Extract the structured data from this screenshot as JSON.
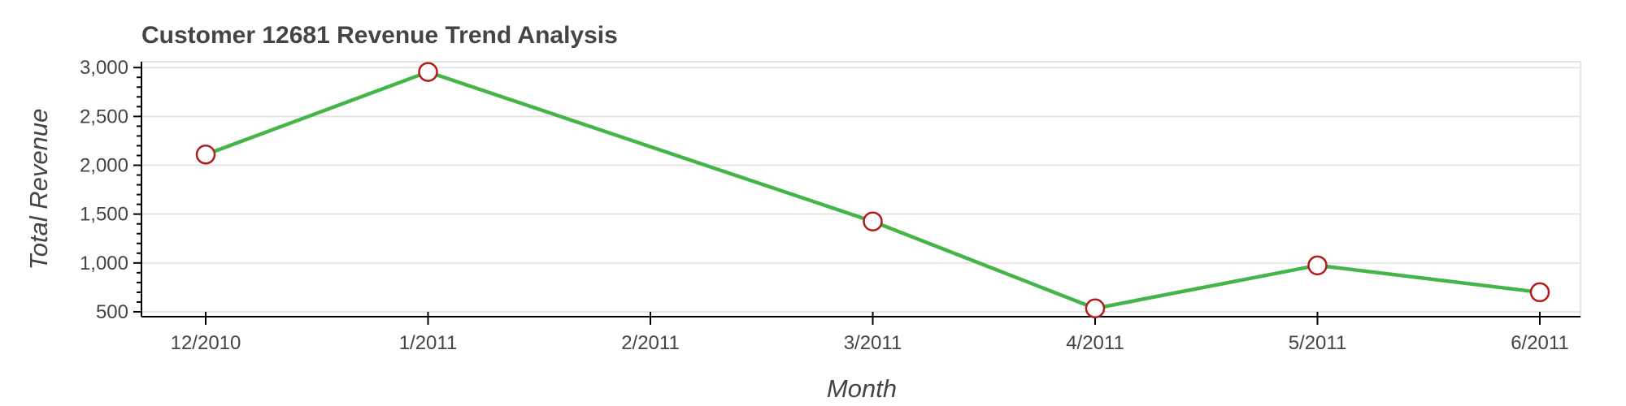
{
  "chart_data": {
    "type": "line",
    "title": "Customer 12681 Revenue Trend Analysis",
    "xlabel": "Month",
    "ylabel": "Total Revenue",
    "x_ticks": [
      "12/2010",
      "1/2011",
      "2/2011",
      "3/2011",
      "4/2011",
      "5/2011",
      "6/2011"
    ],
    "points": [
      {
        "x": "12/2010",
        "y": 2110
      },
      {
        "x": "1/2011",
        "y": 2955
      },
      {
        "x": "3/2011",
        "y": 1425
      },
      {
        "x": "4/2011",
        "y": 535
      },
      {
        "x": "5/2011",
        "y": 975
      },
      {
        "x": "6/2011",
        "y": 700
      }
    ],
    "y_ticks": [
      500,
      1000,
      1500,
      2000,
      2500,
      3000
    ],
    "y_tick_labels": [
      "500",
      "1,000",
      "1,500",
      "2,000",
      "2,500",
      "3,000"
    ],
    "ylim": [
      450,
      3060
    ],
    "grid": true,
    "colors": {
      "line": "#44b549",
      "marker_stroke": "#b31b1b",
      "marker_fill": "#ffffff"
    }
  }
}
